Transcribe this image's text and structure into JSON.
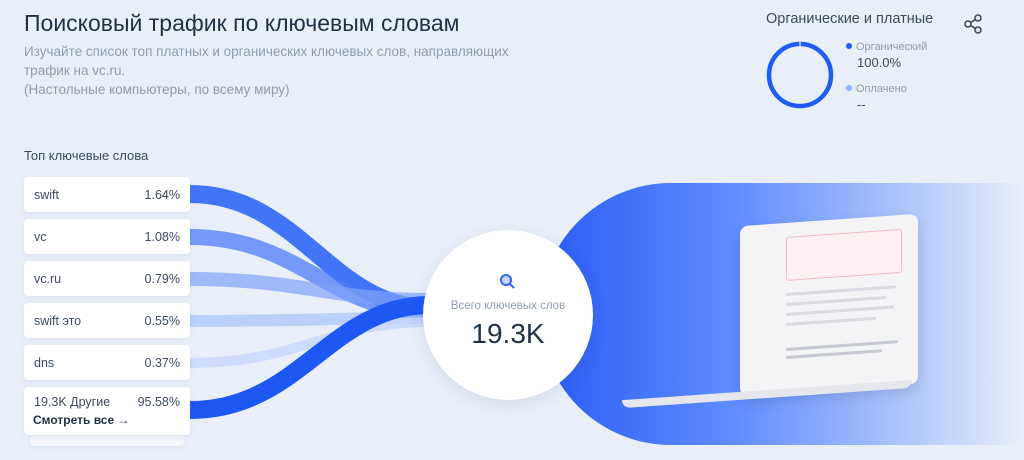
{
  "header": {
    "title": "Поисковый трафик по ключевым словам",
    "subtitle_line1": "Изучайте список топ платных и органических ключевых слов, направляющих",
    "subtitle_line2": "трафик на vc.ru.",
    "subtitle_line3": "(Настольные компьютеры, по всему миру)"
  },
  "traffic_split": {
    "title": "Органические и платные",
    "organic_label": "Органический",
    "organic_value": "100.0%",
    "organic_share": 100,
    "organic_color": "#1f5cf5",
    "paid_label": "Оплачено",
    "paid_value": "--",
    "paid_color": "#8fb0fb",
    "share_icon": "share-icon"
  },
  "keywords": {
    "title": "Топ ключевые слова",
    "items": [
      {
        "keyword": "swift",
        "share": "1.64%"
      },
      {
        "keyword": "vc",
        "share": "1.08%"
      },
      {
        "keyword": "vc.ru",
        "share": "0.79%"
      },
      {
        "keyword": "swift это",
        "share": "0.55%"
      },
      {
        "keyword": "dns",
        "share": "0.37%"
      },
      {
        "keyword": "19.3K Другие",
        "share": "95.58%"
      }
    ],
    "see_all": "Смотреть все →"
  },
  "total": {
    "label": "Всего ключевых слов",
    "value": "19.3K",
    "icon": "search-icon"
  }
}
